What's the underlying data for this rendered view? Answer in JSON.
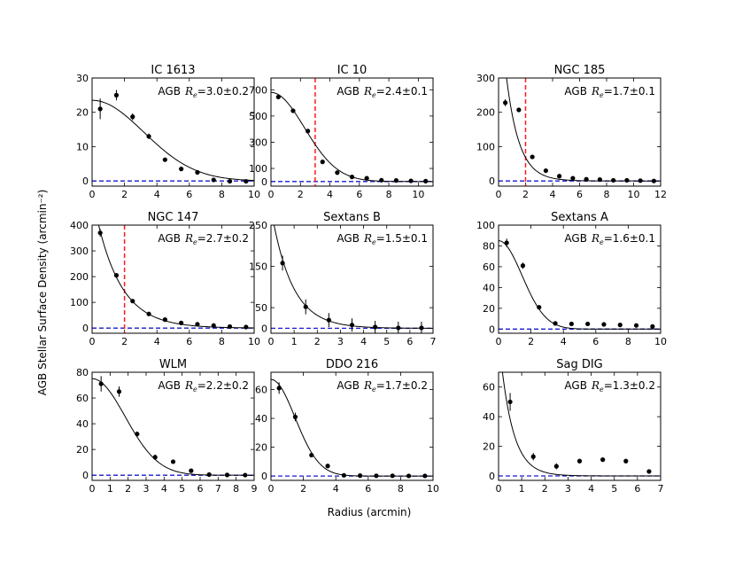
{
  "figure": {
    "ylabel": "AGB Stellar Surface Density (arcmin⁻²)",
    "xlabel": "Radius (arcmin)"
  },
  "chart_data": [
    {
      "type": "scatter",
      "title": "IC 1613",
      "annotation": {
        "prefix": "AGB",
        "symbol": "R",
        "sub": "e",
        "value": "=3.0±0.2"
      },
      "xlim": [
        0,
        10
      ],
      "ylim": [
        -1.5,
        30
      ],
      "xticks": [
        0,
        2,
        4,
        6,
        8,
        10
      ],
      "yticks": [
        0,
        10,
        20,
        30
      ],
      "points": {
        "x": [
          0.5,
          1.5,
          2.5,
          3.5,
          4.5,
          5.5,
          6.5,
          7.5,
          8.5,
          9.5
        ],
        "y": [
          21,
          25,
          18.7,
          13,
          6.2,
          3.5,
          2.5,
          0.3,
          -0.1,
          -0.1
        ],
        "err": [
          3.0,
          1.5,
          1.0,
          0.8,
          0.6,
          0.5,
          0.4,
          0.3,
          0.2,
          0.2
        ]
      },
      "fit": {
        "kind": "gauss",
        "A": 23.5,
        "Re": 4.5
      },
      "vline": null
    },
    {
      "type": "scatter",
      "title": "IC 10",
      "annotation": {
        "prefix": "AGB",
        "symbol": "R",
        "sub": "e",
        "value": "=2.4±0.1"
      },
      "xlim": [
        0,
        11
      ],
      "ylim": [
        -35,
        790
      ],
      "xticks": [
        0,
        2,
        4,
        6,
        8,
        10
      ],
      "yticks": [
        0,
        100,
        300,
        500,
        700
      ],
      "points": {
        "x": [
          0.5,
          1.5,
          2.5,
          3.5,
          4.5,
          5.5,
          6.5,
          7.5,
          8.5,
          9.5,
          10.5
        ],
        "y": [
          645,
          540,
          385,
          150,
          68,
          35,
          25,
          10,
          8,
          5,
          3
        ],
        "err": [
          12,
          10,
          10,
          8,
          6,
          5,
          4,
          3,
          3,
          3,
          2
        ]
      },
      "fit": {
        "kind": "gauss",
        "A": 680,
        "Re": 3.2
      },
      "vline": 3.0
    },
    {
      "type": "scatter",
      "title": "NGC 185",
      "annotation": {
        "prefix": "AGB",
        "symbol": "R",
        "sub": "e",
        "value": "=1.7±0.1"
      },
      "xlim": [
        0,
        12
      ],
      "ylim": [
        -15,
        300
      ],
      "xticks": [
        0,
        2,
        4,
        6,
        8,
        10,
        12
      ],
      "yticks": [
        0,
        100,
        200,
        300
      ],
      "points": {
        "x": [
          0.5,
          1.5,
          2.5,
          3.5,
          4.5,
          5.5,
          6.5,
          7.5,
          8.5,
          9.5,
          10.5,
          11.5
        ],
        "y": [
          228,
          207,
          70,
          30,
          14,
          8,
          5,
          4,
          2,
          2,
          1,
          0
        ],
        "err": [
          10,
          6,
          4,
          3,
          2,
          2,
          1,
          1,
          1,
          1,
          1,
          1
        ]
      },
      "fit": {
        "kind": "exp",
        "A": 560,
        "h": 0.95
      },
      "vline": 2.0
    },
    {
      "type": "scatter",
      "title": "NGC 147",
      "annotation": {
        "prefix": "AGB",
        "symbol": "R",
        "sub": "e",
        "value": "=2.7±0.2"
      },
      "xlim": [
        0,
        10
      ],
      "ylim": [
        -20,
        400
      ],
      "xticks": [
        0,
        2,
        4,
        6,
        8,
        10
      ],
      "yticks": [
        0,
        100,
        200,
        300,
        400
      ],
      "points": {
        "x": [
          0.5,
          1.5,
          2.5,
          3.5,
          4.5,
          5.5,
          6.5,
          7.5,
          8.5,
          9.5
        ],
        "y": [
          370,
          205,
          105,
          55,
          33,
          20,
          15,
          10,
          6,
          4
        ],
        "err": [
          15,
          8,
          5,
          4,
          3,
          2,
          2,
          2,
          1,
          1
        ]
      },
      "fit": {
        "kind": "exp",
        "A": 520,
        "h": 1.55
      },
      "vline": 2.0
    },
    {
      "type": "scatter",
      "title": "Sextans B",
      "annotation": {
        "prefix": "AGB",
        "symbol": "R",
        "sub": "e",
        "value": "=1.5±0.1"
      },
      "xlim": [
        0,
        7
      ],
      "ylim": [
        -12,
        250
      ],
      "xticks": [
        0,
        1,
        2,
        3,
        4,
        5,
        6,
        7
      ],
      "yticks": [
        0,
        50,
        150,
        250
      ],
      "points": {
        "x": [
          0.5,
          1.5,
          2.5,
          3.5,
          4.5,
          5.5,
          6.5
        ],
        "y": [
          158,
          52,
          20,
          8,
          3,
          1,
          1
        ],
        "err": [
          18,
          18,
          17,
          16,
          15,
          15,
          15
        ]
      },
      "fit": {
        "kind": "exp",
        "A": 290,
        "h": 0.9
      },
      "vline": null
    },
    {
      "type": "scatter",
      "title": "Sextans A",
      "annotation": {
        "prefix": "AGB",
        "symbol": "R",
        "sub": "e",
        "value": "=1.6±0.1"
      },
      "xlim": [
        0,
        10
      ],
      "ylim": [
        -4,
        100
      ],
      "xticks": [
        0,
        2,
        4,
        6,
        8,
        10
      ],
      "yticks": [
        0,
        20,
        40,
        60,
        80,
        100
      ],
      "points": {
        "x": [
          0.5,
          1.5,
          2.5,
          3.5,
          4.5,
          5.5,
          6.5,
          7.5,
          8.5,
          9.5
        ],
        "y": [
          83,
          61,
          21,
          5.5,
          5,
          5,
          4.5,
          4,
          3.5,
          2.5
        ],
        "err": [
          4,
          3,
          2,
          1,
          1,
          1,
          1,
          1,
          1,
          1
        ]
      },
      "fit": {
        "kind": "gauss",
        "A": 85,
        "Re": 2.05
      },
      "vline": null
    },
    {
      "type": "scatter",
      "title": "WLM",
      "annotation": {
        "prefix": "AGB",
        "symbol": "R",
        "sub": "e",
        "value": "=2.2±0.2"
      },
      "xlim": [
        0,
        9
      ],
      "ylim": [
        -4,
        80
      ],
      "xticks": [
        0,
        1,
        2,
        3,
        4,
        5,
        6,
        7,
        8,
        9
      ],
      "yticks": [
        0,
        20,
        40,
        60,
        80
      ],
      "points": {
        "x": [
          0.5,
          1.5,
          2.5,
          3.5,
          4.5,
          5.5,
          6.5,
          7.5,
          8.5
        ],
        "y": [
          71,
          65,
          32,
          14,
          10.5,
          3.5,
          0.5,
          0.2,
          0.1
        ],
        "err": [
          6,
          4,
          2,
          2,
          1,
          1,
          0.5,
          0.5,
          0.5
        ]
      },
      "fit": {
        "kind": "gauss",
        "A": 75,
        "Re": 2.6
      },
      "vline": null
    },
    {
      "type": "scatter",
      "title": "DDO 216",
      "annotation": {
        "prefix": "AGB",
        "symbol": "R",
        "sub": "e",
        "value": "=1.7±0.2"
      },
      "xlim": [
        0,
        10
      ],
      "ylim": [
        -3,
        72
      ],
      "xticks": [
        0,
        2,
        4,
        6,
        8,
        10
      ],
      "yticks": [
        0,
        20,
        40,
        60
      ],
      "points": {
        "x": [
          0.5,
          1.5,
          2.5,
          3.5,
          4.5,
          5.5,
          6.5,
          7.5,
          8.5,
          9.5
        ],
        "y": [
          61,
          41,
          14.5,
          7,
          0.5,
          0.3,
          0.2,
          0.2,
          0.1,
          0.1
        ],
        "err": [
          4,
          3,
          1.5,
          1,
          0.5,
          0.5,
          0.3,
          0.3,
          0.3,
          0.3
        ]
      },
      "fit": {
        "kind": "gauss",
        "A": 67,
        "Re": 2.1
      },
      "vline": null
    },
    {
      "type": "scatter",
      "title": "Sag DIG",
      "annotation": {
        "prefix": "AGB",
        "symbol": "R",
        "sub": "e",
        "value": "=1.3±0.2"
      },
      "xlim": [
        0,
        7
      ],
      "ylim": [
        -3,
        70
      ],
      "xticks": [
        0,
        1,
        2,
        3,
        4,
        5,
        6,
        7
      ],
      "yticks": [
        0,
        20,
        40,
        60
      ],
      "points": {
        "x": [
          0.5,
          1.5,
          2.5,
          3.5,
          4.5,
          5.5,
          6.5
        ],
        "y": [
          50,
          13,
          6.5,
          10,
          11,
          10,
          3
        ],
        "err": [
          6,
          2.5,
          2,
          1.5,
          1.5,
          1.5,
          1.0
        ]
      },
      "fit": {
        "kind": "exp",
        "A": 95,
        "h": 0.55
      },
      "vline": null
    }
  ],
  "colors": {
    "points": "#000000",
    "fit": "#000000",
    "zero_line": "#1a1acc",
    "vline": "#ff1a1a"
  }
}
